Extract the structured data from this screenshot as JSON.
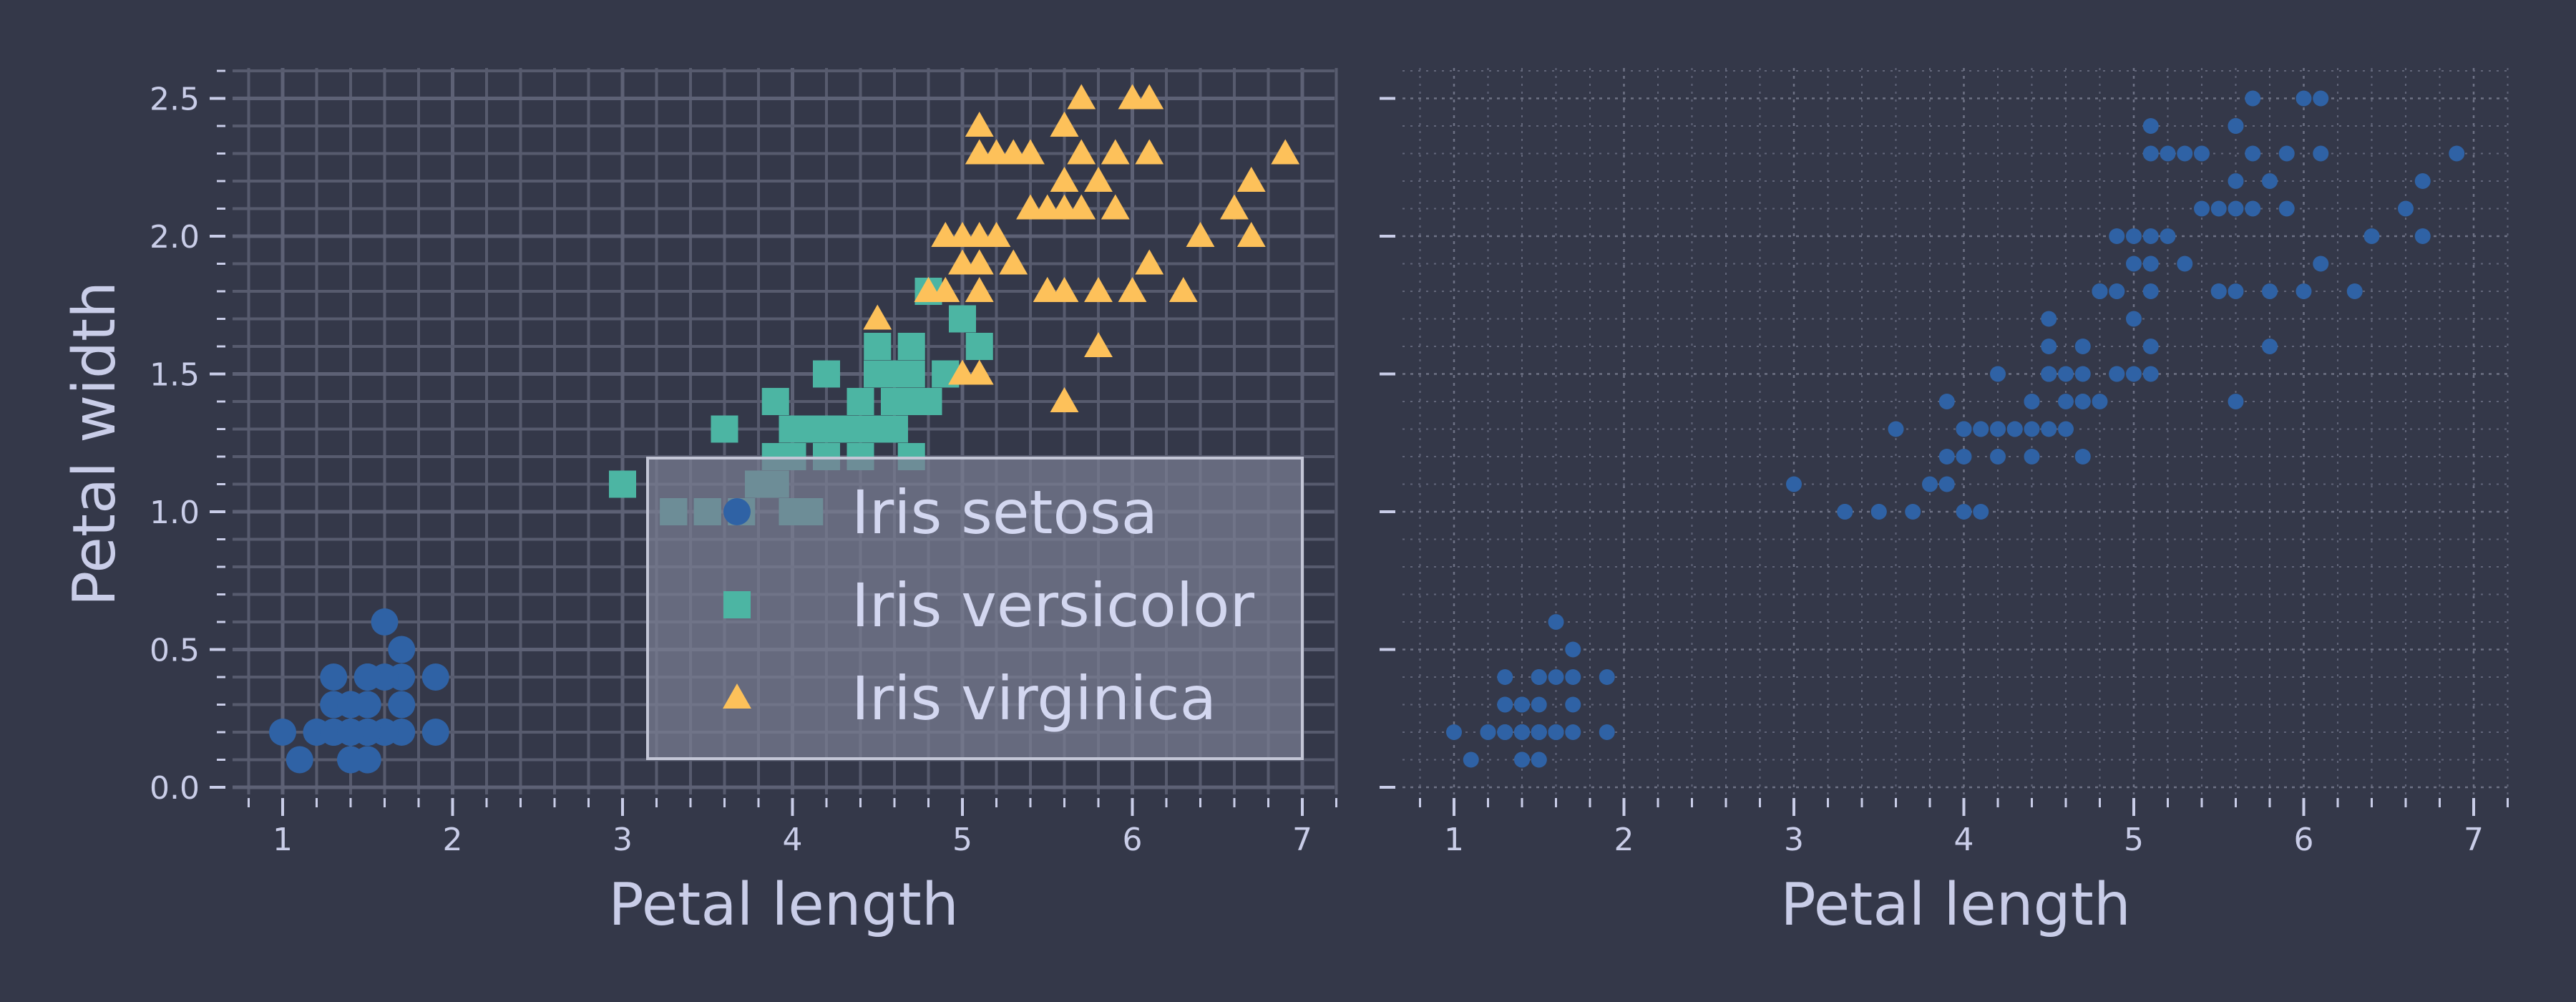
{
  "chart_data": [
    {
      "type": "scatter",
      "panel": "left",
      "xlabel": "Petal length",
      "ylabel": "Petal width",
      "xlim": [
        0.7,
        7.2
      ],
      "ylim": [
        -0.05,
        2.6
      ],
      "x_ticks": [
        "1",
        "2",
        "3",
        "4",
        "5",
        "6",
        "7"
      ],
      "y_ticks": [
        "0.0",
        "0.5",
        "1.0",
        "1.5",
        "2.0",
        "2.5"
      ],
      "grid": "major and minor, solid",
      "legend_placement": "lower-right",
      "series": [
        {
          "name": "Iris setosa",
          "marker": "circle",
          "color": "#2f62a5",
          "points": [
            [
              1.4,
              0.2
            ],
            [
              1.4,
              0.2
            ],
            [
              1.3,
              0.2
            ],
            [
              1.5,
              0.2
            ],
            [
              1.4,
              0.2
            ],
            [
              1.7,
              0.4
            ],
            [
              1.4,
              0.3
            ],
            [
              1.5,
              0.2
            ],
            [
              1.4,
              0.2
            ],
            [
              1.5,
              0.1
            ],
            [
              1.5,
              0.2
            ],
            [
              1.6,
              0.2
            ],
            [
              1.4,
              0.1
            ],
            [
              1.1,
              0.1
            ],
            [
              1.2,
              0.2
            ],
            [
              1.5,
              0.4
            ],
            [
              1.3,
              0.4
            ],
            [
              1.4,
              0.3
            ],
            [
              1.7,
              0.3
            ],
            [
              1.5,
              0.3
            ],
            [
              1.7,
              0.2
            ],
            [
              1.5,
              0.4
            ],
            [
              1.0,
              0.2
            ],
            [
              1.7,
              0.5
            ],
            [
              1.9,
              0.2
            ],
            [
              1.6,
              0.2
            ],
            [
              1.6,
              0.4
            ],
            [
              1.5,
              0.2
            ],
            [
              1.4,
              0.2
            ],
            [
              1.6,
              0.2
            ],
            [
              1.6,
              0.2
            ],
            [
              1.5,
              0.4
            ],
            [
              1.5,
              0.1
            ],
            [
              1.4,
              0.2
            ],
            [
              1.5,
              0.2
            ],
            [
              1.2,
              0.2
            ],
            [
              1.3,
              0.2
            ],
            [
              1.4,
              0.1
            ],
            [
              1.3,
              0.2
            ],
            [
              1.5,
              0.2
            ],
            [
              1.3,
              0.3
            ],
            [
              1.3,
              0.3
            ],
            [
              1.3,
              0.2
            ],
            [
              1.6,
              0.6
            ],
            [
              1.9,
              0.4
            ],
            [
              1.4,
              0.3
            ],
            [
              1.6,
              0.2
            ],
            [
              1.4,
              0.2
            ],
            [
              1.5,
              0.2
            ],
            [
              1.4,
              0.2
            ]
          ]
        },
        {
          "name": "Iris versicolor",
          "marker": "square",
          "color": "#4cb5a3",
          "points": [
            [
              4.7,
              1.4
            ],
            [
              4.5,
              1.5
            ],
            [
              4.9,
              1.5
            ],
            [
              4.0,
              1.3
            ],
            [
              4.6,
              1.5
            ],
            [
              4.5,
              1.3
            ],
            [
              4.7,
              1.6
            ],
            [
              3.3,
              1.0
            ],
            [
              4.6,
              1.3
            ],
            [
              3.9,
              1.4
            ],
            [
              3.5,
              1.0
            ],
            [
              4.2,
              1.5
            ],
            [
              4.0,
              1.0
            ],
            [
              4.7,
              1.4
            ],
            [
              3.6,
              1.3
            ],
            [
              4.4,
              1.4
            ],
            [
              4.5,
              1.5
            ],
            [
              4.1,
              1.0
            ],
            [
              4.5,
              1.5
            ],
            [
              3.9,
              1.1
            ],
            [
              4.8,
              1.8
            ],
            [
              4.0,
              1.3
            ],
            [
              4.9,
              1.5
            ],
            [
              4.7,
              1.2
            ],
            [
              4.3,
              1.3
            ],
            [
              4.4,
              1.4
            ],
            [
              4.8,
              1.4
            ],
            [
              5.0,
              1.7
            ],
            [
              4.5,
              1.5
            ],
            [
              3.5,
              1.0
            ],
            [
              3.8,
              1.1
            ],
            [
              3.7,
              1.0
            ],
            [
              3.9,
              1.2
            ],
            [
              5.1,
              1.6
            ],
            [
              4.5,
              1.5
            ],
            [
              4.5,
              1.6
            ],
            [
              4.7,
              1.5
            ],
            [
              4.4,
              1.3
            ],
            [
              4.1,
              1.3
            ],
            [
              4.0,
              1.3
            ],
            [
              4.4,
              1.2
            ],
            [
              4.6,
              1.4
            ],
            [
              4.0,
              1.2
            ],
            [
              3.3,
              1.0
            ],
            [
              4.2,
              1.3
            ],
            [
              4.2,
              1.2
            ],
            [
              4.2,
              1.3
            ],
            [
              4.3,
              1.3
            ],
            [
              3.0,
              1.1
            ],
            [
              4.1,
              1.3
            ]
          ]
        },
        {
          "name": "Iris virginica",
          "marker": "triangle",
          "color": "#fdc15a",
          "points": [
            [
              6.0,
              2.5
            ],
            [
              5.1,
              1.9
            ],
            [
              5.9,
              2.1
            ],
            [
              5.6,
              1.8
            ],
            [
              5.8,
              2.2
            ],
            [
              6.6,
              2.1
            ],
            [
              4.5,
              1.7
            ],
            [
              6.3,
              1.8
            ],
            [
              5.8,
              1.8
            ],
            [
              6.1,
              2.5
            ],
            [
              5.1,
              2.0
            ],
            [
              5.3,
              1.9
            ],
            [
              5.5,
              2.1
            ],
            [
              5.0,
              2.0
            ],
            [
              5.1,
              2.4
            ],
            [
              5.3,
              2.3
            ],
            [
              5.5,
              1.8
            ],
            [
              6.7,
              2.2
            ],
            [
              6.9,
              2.3
            ],
            [
              5.0,
              1.5
            ],
            [
              5.7,
              2.3
            ],
            [
              4.9,
              2.0
            ],
            [
              6.7,
              2.0
            ],
            [
              4.9,
              1.8
            ],
            [
              5.7,
              2.1
            ],
            [
              6.0,
              1.8
            ],
            [
              4.8,
              1.8
            ],
            [
              4.9,
              1.8
            ],
            [
              5.6,
              2.1
            ],
            [
              5.8,
              1.6
            ],
            [
              6.1,
              1.9
            ],
            [
              6.4,
              2.0
            ],
            [
              5.6,
              2.2
            ],
            [
              5.1,
              1.5
            ],
            [
              5.6,
              1.4
            ],
            [
              6.1,
              2.3
            ],
            [
              5.6,
              2.4
            ],
            [
              5.5,
              1.8
            ],
            [
              4.8,
              1.8
            ],
            [
              5.4,
              2.1
            ],
            [
              5.6,
              2.4
            ],
            [
              5.1,
              2.3
            ],
            [
              5.1,
              1.9
            ],
            [
              5.9,
              2.3
            ],
            [
              5.7,
              2.5
            ],
            [
              5.2,
              2.3
            ],
            [
              5.0,
              1.9
            ],
            [
              5.2,
              2.0
            ],
            [
              5.4,
              2.3
            ],
            [
              5.1,
              1.8
            ]
          ]
        }
      ]
    },
    {
      "type": "scatter",
      "panel": "right",
      "xlabel": "Petal length",
      "ylabel": "",
      "xlim": [
        0.7,
        7.2
      ],
      "ylim": [
        -0.05,
        2.6
      ],
      "x_ticks": [
        "1",
        "2",
        "3",
        "4",
        "5",
        "6",
        "7"
      ],
      "grid": "major and minor, dotted",
      "legend_placement": "none",
      "series": [
        {
          "marker": "circle",
          "color": "#2f62a5",
          "source": "all points"
        }
      ]
    }
  ],
  "legend": {
    "items": [
      {
        "label": "Iris setosa",
        "marker": "circle",
        "color": "#2f62a5"
      },
      {
        "label": "Iris versicolor",
        "marker": "square",
        "color": "#4cb5a3"
      },
      {
        "label": "Iris virginica",
        "marker": "triangle",
        "color": "#fdc15a"
      }
    ]
  },
  "colors": {
    "background": "#343849",
    "text": "#c9cde8",
    "grid_solid": "#5b5f72",
    "grid_dotted": "#6e7285"
  }
}
